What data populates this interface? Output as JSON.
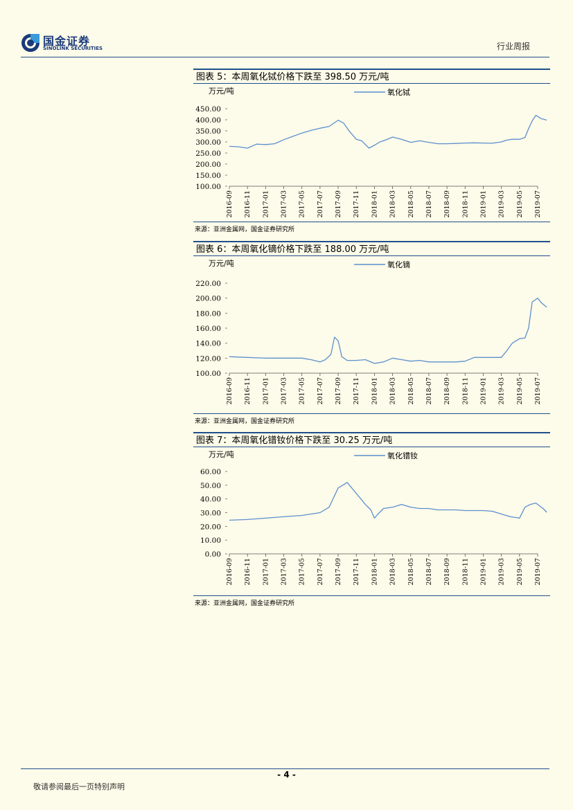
{
  "header": {
    "logo_cn": "国金证券",
    "logo_en": "SINOLINK SECURITIES",
    "doc_type": "行业周报"
  },
  "figures": [
    {
      "title": "图表 5：本周氧化铽价格下跌至 398.50 万元/吨",
      "source": "来源：亚洲金属网，国金证券研究所"
    },
    {
      "title": "图表 6：本周氧化镝价格下跌至 188.00 万元/吨",
      "source": "来源：亚洲金属网，国金证券研究所"
    },
    {
      "title": "图表 7：本周氧化镨钕价格下跌至 30.25 万元/吨",
      "source": "来源：亚洲金属网，国金证券研究所"
    }
  ],
  "chart_data": [
    {
      "type": "line",
      "title": "本周氧化铽价格下跌至 398.50 万元/吨",
      "ylabel": "万元/吨",
      "ylim": [
        100,
        450
      ],
      "yticks": [
        "450.00",
        "400.00",
        "350.00",
        "300.00",
        "250.00",
        "200.00",
        "150.00",
        "100.00"
      ],
      "categories": [
        "2016-09",
        "2016-11",
        "2017-01",
        "2017-03",
        "2017-05",
        "2017-07",
        "2017-09",
        "2017-11",
        "2018-01",
        "2018-03",
        "2018-05",
        "2018-07",
        "2018-09",
        "2018-11",
        "2019-01",
        "2019-03",
        "2019-05",
        "2019-07"
      ],
      "series": [
        {
          "name": "氧化铽",
          "color": "#5b8fd1",
          "x": [
            0,
            0.5,
            1,
            1.5,
            2,
            2.5,
            3,
            3.5,
            4,
            4.5,
            5,
            5.5,
            6,
            6.3,
            6.6,
            7,
            7.3,
            7.7,
            8,
            8.3,
            8.6,
            9,
            9.5,
            10,
            10.5,
            11,
            11.5,
            12,
            12.5,
            13,
            13.5,
            14,
            14.5,
            15,
            15.3,
            15.6,
            16,
            16.3,
            16.5,
            16.7,
            16.9,
            17.2,
            17.5
          ],
          "values": [
            280,
            278,
            272,
            290,
            288,
            292,
            310,
            325,
            340,
            352,
            362,
            370,
            398,
            385,
            350,
            312,
            305,
            272,
            285,
            300,
            308,
            322,
            312,
            298,
            305,
            298,
            292,
            292,
            293,
            295,
            296,
            295,
            294,
            300,
            308,
            312,
            312,
            320,
            360,
            395,
            420,
            405,
            398.5
          ]
        }
      ]
    },
    {
      "type": "line",
      "title": "本周氧化镝价格下跌至 188.00 万元/吨",
      "ylabel": "万元/吨",
      "ylim": [
        100,
        220
      ],
      "yticks": [
        "220.00",
        "200.00",
        "180.00",
        "160.00",
        "140.00",
        "120.00",
        "100.00"
      ],
      "categories": [
        "2016-09",
        "2016-11",
        "2017-01",
        "2017-03",
        "2017-05",
        "2017-07",
        "2017-09",
        "2017-11",
        "2018-01",
        "2018-03",
        "2018-05",
        "2018-07",
        "2018-09",
        "2018-11",
        "2019-01",
        "2019-03",
        "2019-05",
        "2019-07"
      ],
      "series": [
        {
          "name": "氧化镝",
          "color": "#5b8fd1",
          "x": [
            0,
            1,
            2,
            3,
            4,
            4.5,
            5,
            5.3,
            5.6,
            5.8,
            6,
            6.2,
            6.5,
            7,
            7.5,
            8,
            8.5,
            9,
            9.5,
            10,
            10.5,
            11,
            11.5,
            12,
            12.5,
            13,
            13.5,
            14,
            14.5,
            15,
            15.3,
            15.6,
            16,
            16.3,
            16.5,
            16.7,
            17,
            17.2,
            17.5
          ],
          "values": [
            122,
            121,
            120,
            120,
            120,
            118,
            115,
            118,
            125,
            148,
            143,
            122,
            117,
            117,
            118,
            113,
            115,
            120,
            118,
            116,
            117,
            115,
            115,
            115,
            115,
            116,
            121,
            121,
            121,
            121,
            130,
            140,
            146,
            147,
            160,
            195,
            200,
            194,
            188
          ]
        }
      ]
    },
    {
      "type": "line",
      "title": "本周氧化镨钕价格下跌至 30.25 万元/吨",
      "ylabel": "万元/吨",
      "ylim": [
        0,
        60
      ],
      "yticks": [
        "60.00",
        "50.00",
        "40.00",
        "30.00",
        "20.00",
        "10.00",
        "0.00"
      ],
      "categories": [
        "2016-09",
        "2016-11",
        "2017-01",
        "2017-03",
        "2017-05",
        "2017-07",
        "2017-09",
        "2017-11",
        "2018-01",
        "2018-03",
        "2018-05",
        "2018-07",
        "2018-09",
        "2018-11",
        "2019-01",
        "2019-03",
        "2019-05",
        "2019-07"
      ],
      "series": [
        {
          "name": "氧化镨钕",
          "color": "#5b8fd1",
          "x": [
            0,
            1,
            2,
            3,
            4,
            5,
            5.5,
            6,
            6.5,
            7,
            7.5,
            7.8,
            8,
            8.2,
            8.5,
            9,
            9.5,
            10,
            10.5,
            11,
            11.5,
            12,
            12.5,
            13,
            13.5,
            14,
            14.5,
            15,
            15.5,
            16,
            16.3,
            16.6,
            16.9,
            17.1,
            17.3,
            17.5
          ],
          "values": [
            24.5,
            25,
            26,
            27,
            28,
            30,
            34,
            48,
            52,
            44,
            36,
            32,
            26,
            29,
            33,
            34,
            36,
            34,
            33,
            33,
            32,
            32,
            32,
            31.5,
            31.5,
            31.5,
            31,
            29,
            27,
            26,
            34,
            36,
            37,
            35,
            33,
            30.25
          ]
        }
      ]
    }
  ],
  "footer": {
    "page": "- 4 -",
    "disclaimer": "敬请参阅最后一页特别声明"
  }
}
